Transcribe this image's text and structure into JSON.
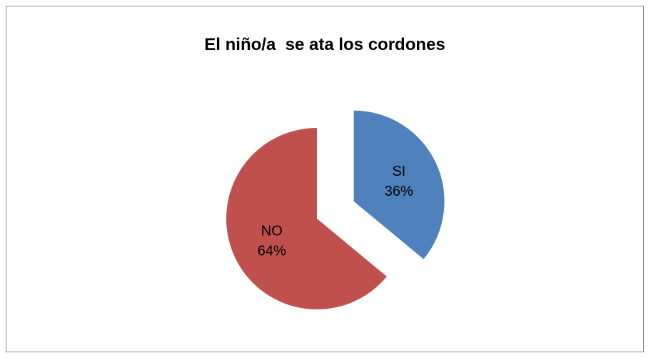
{
  "chart_data": {
    "type": "pie",
    "title": "El niño/a  se ata los cordones",
    "categories": [
      "SI",
      "NO"
    ],
    "values": [
      36,
      64
    ],
    "unit": "%",
    "data_labels": [
      "36%",
      "64%"
    ],
    "exploded": true,
    "colors": [
      "#4F81BD",
      "#C0504D"
    ],
    "legend": "none"
  }
}
